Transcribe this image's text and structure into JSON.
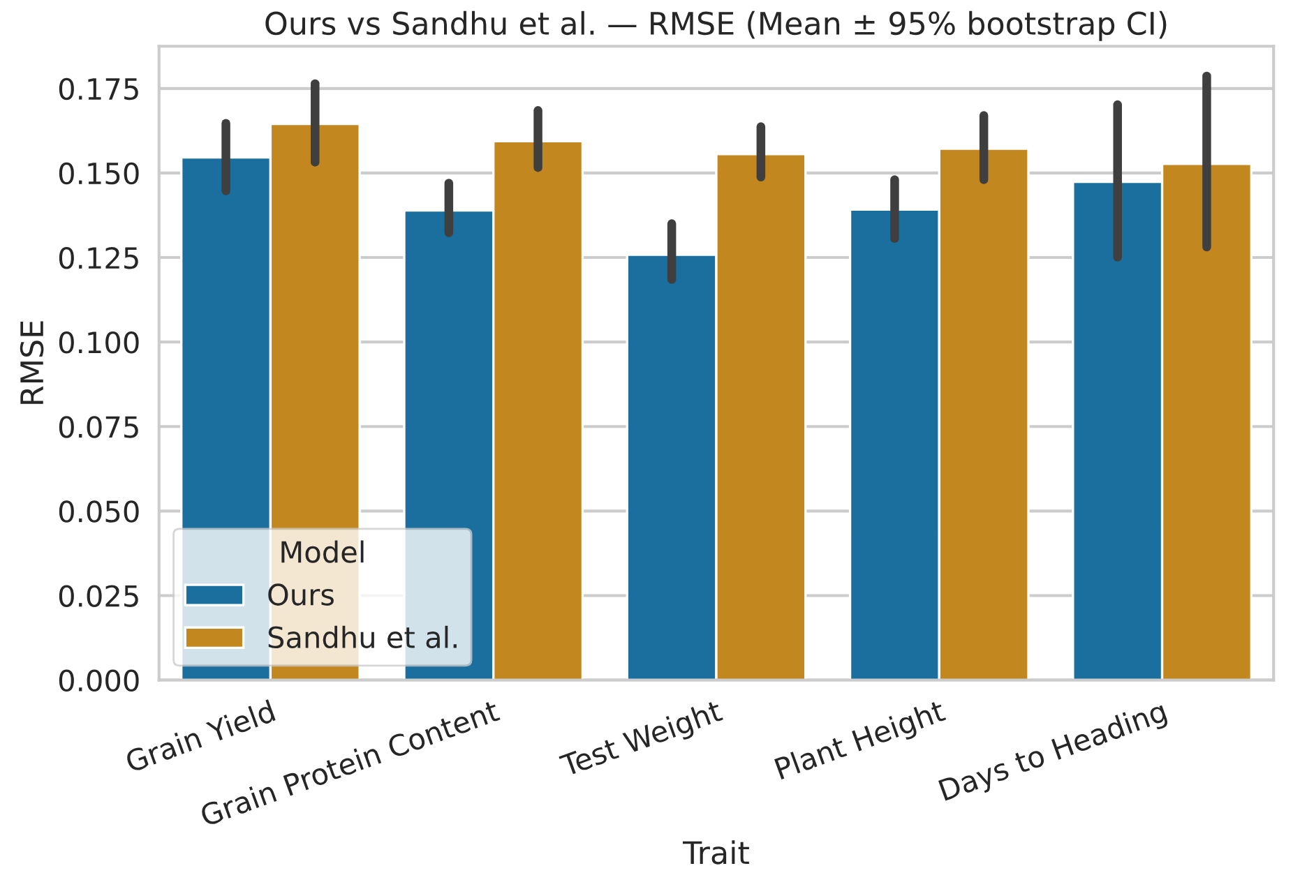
{
  "chart_data": {
    "type": "bar",
    "title": "Ours vs Sandhu et al. — RMSE (Mean ± 95% bootstrap CI)",
    "xlabel": "Trait",
    "ylabel": "RMSE",
    "legend_title": "Model",
    "categories": [
      "Grain Yield",
      "Grain Protein Content",
      "Test Weight",
      "Plant Height",
      "Days to Heading"
    ],
    "series": [
      {
        "name": "Ours",
        "color": "#1a6f9f",
        "values": [
          0.1546,
          0.1389,
          0.1258,
          0.1392,
          0.1474
        ],
        "errors": [
          [
            0.1447,
            0.1647
          ],
          [
            0.1323,
            0.147
          ],
          [
            0.1185,
            0.135
          ],
          [
            0.1306,
            0.148
          ],
          [
            0.1251,
            0.1702
          ]
        ]
      },
      {
        "name": "Sandhu et al.",
        "color": "#c3871f",
        "values": [
          0.1645,
          0.1594,
          0.1556,
          0.1572,
          0.1527
        ],
        "errors": [
          [
            0.1532,
            0.1764
          ],
          [
            0.1516,
            0.1685
          ],
          [
            0.1488,
            0.1637
          ],
          [
            0.148,
            0.167
          ],
          [
            0.1281,
            0.1787
          ]
        ]
      }
    ],
    "ylim": [
      0,
      0.1875
    ],
    "yticks": [
      {
        "value": 0,
        "label": "0.000"
      },
      {
        "value": 0.025,
        "label": "0.025"
      },
      {
        "value": 0.05,
        "label": "0.050"
      },
      {
        "value": 0.075,
        "label": "0.075"
      },
      {
        "value": 0.1,
        "label": "0.100"
      },
      {
        "value": 0.125,
        "label": "0.125"
      },
      {
        "value": 0.15,
        "label": "0.150"
      },
      {
        "value": 0.175,
        "label": "0.175"
      }
    ],
    "grid": "y",
    "legend": "lower left"
  }
}
